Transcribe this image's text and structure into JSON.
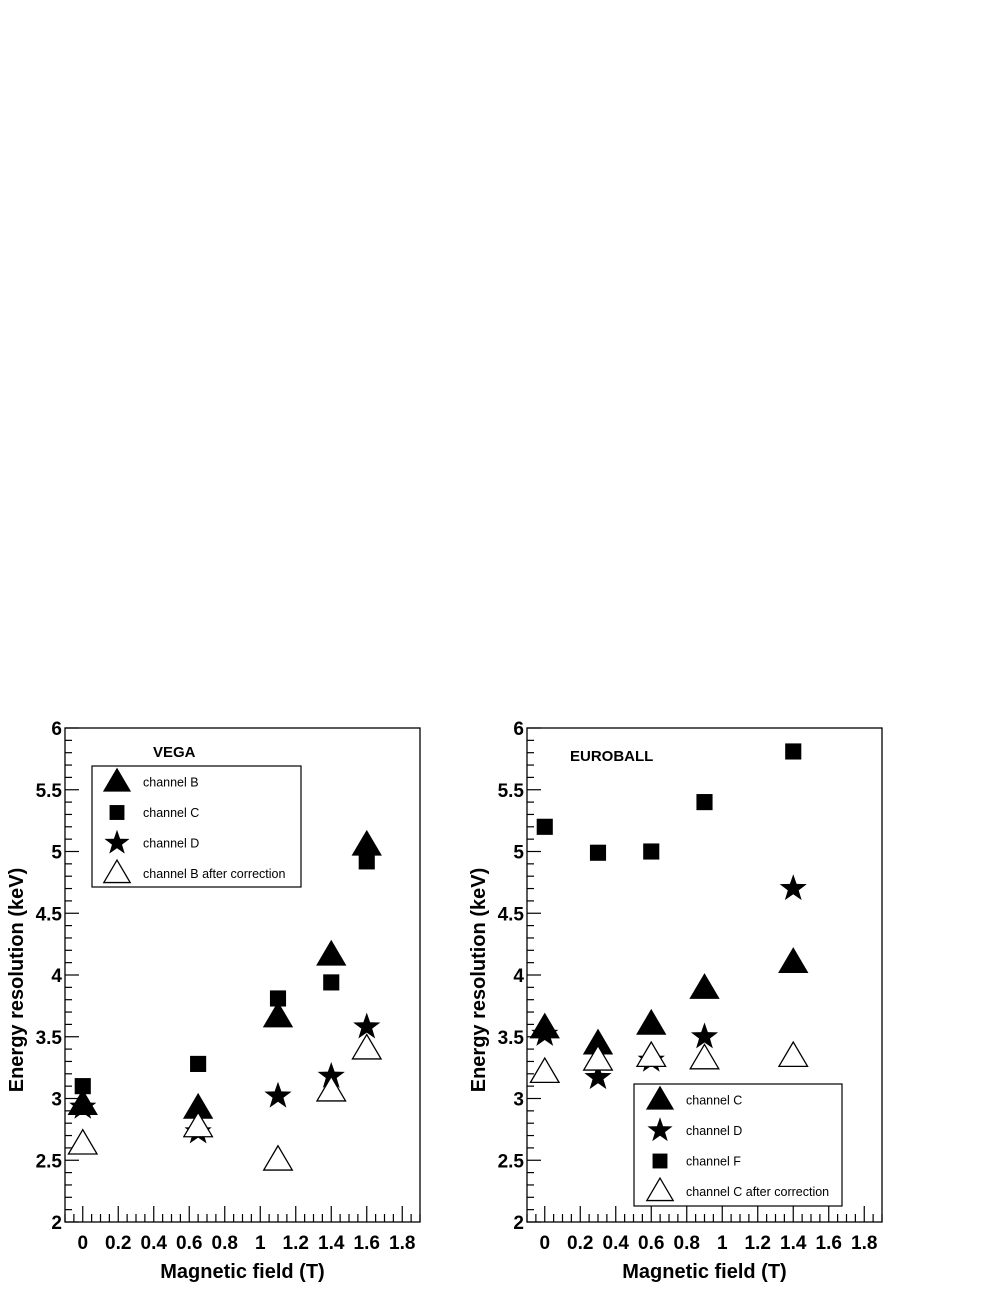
{
  "chart_data": [
    {
      "type": "scatter",
      "title": "VEGA",
      "xlabel": "Magnetic field (T)",
      "ylabel": "Energy resolution (keV)",
      "xlim": [
        -0.1,
        1.9
      ],
      "ylim": [
        2,
        6
      ],
      "xticks": [
        "0",
        "0.2",
        "0.4",
        "0.6",
        "0.8",
        "1",
        "1.2",
        "1.4",
        "1.6",
        "1.8"
      ],
      "yticks": [
        "2",
        "2.5",
        "3",
        "3.5",
        "4",
        "4.5",
        "5",
        "5.5",
        "6"
      ],
      "grid": false,
      "legend_position": "top-left",
      "series": [
        {
          "name": "channel B",
          "marker": "filled-triangle",
          "x": [
            0,
            0.65,
            1.1,
            1.4,
            1.6
          ],
          "y": [
            2.95,
            2.92,
            3.66,
            4.16,
            5.05
          ]
        },
        {
          "name": "channel C",
          "marker": "filled-square",
          "x": [
            0,
            0.65,
            1.1,
            1.4,
            1.6
          ],
          "y": [
            3.1,
            3.28,
            3.81,
            3.94,
            4.92
          ]
        },
        {
          "name": "channel D",
          "marker": "filled-star",
          "x": [
            0,
            0.65,
            1.1,
            1.4,
            1.6
          ],
          "y": [
            2.93,
            2.73,
            3.02,
            3.18,
            3.58
          ]
        },
        {
          "name": "channel B after correction",
          "marker": "open-triangle",
          "x": [
            0,
            0.65,
            1.1,
            1.4,
            1.6
          ],
          "y": [
            2.63,
            2.77,
            2.5,
            3.06,
            3.4
          ]
        }
      ]
    },
    {
      "type": "scatter",
      "title": "EUROBALL",
      "xlabel": "Magnetic field (T)",
      "ylabel": "Energy resolution (keV)",
      "xlim": [
        -0.1,
        1.9
      ],
      "ylim": [
        2,
        6
      ],
      "xticks": [
        "0",
        "0.2",
        "0.4",
        "0.6",
        "0.8",
        "1",
        "1.2",
        "1.4",
        "1.6",
        "1.8"
      ],
      "yticks": [
        "2",
        "2.5",
        "3",
        "3.5",
        "4",
        "4.5",
        "5",
        "5.5",
        "6"
      ],
      "grid": false,
      "legend_position": "bottom-right",
      "series": [
        {
          "name": "channel C",
          "marker": "filled-triangle",
          "x": [
            0,
            0.3,
            0.6,
            0.9,
            1.4
          ],
          "y": [
            3.57,
            3.44,
            3.6,
            3.89,
            4.1
          ]
        },
        {
          "name": "channel D",
          "marker": "filled-star",
          "x": [
            0,
            0.3,
            0.6,
            0.9,
            1.4
          ],
          "y": [
            3.52,
            3.17,
            3.31,
            3.5,
            4.7
          ]
        },
        {
          "name": "channel F",
          "marker": "filled-square",
          "x": [
            0,
            0.3,
            0.6,
            0.9,
            1.4
          ],
          "y": [
            5.2,
            4.99,
            5.0,
            5.4,
            5.81
          ]
        },
        {
          "name": "channel C after correction",
          "marker": "open-triangle",
          "x": [
            0,
            0.3,
            0.6,
            0.9,
            1.4
          ],
          "y": [
            3.21,
            3.31,
            3.34,
            3.32,
            3.34
          ]
        }
      ]
    }
  ]
}
